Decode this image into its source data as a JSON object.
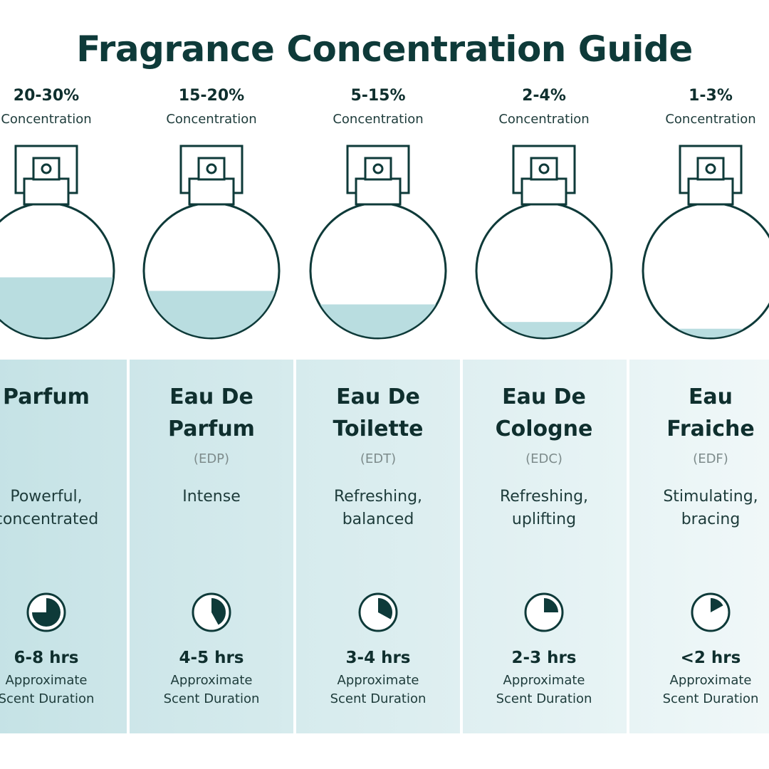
{
  "title": "Fragrance Concentration Guide",
  "colors": {
    "dark": "#0e3a39",
    "liquid": "#b9dde0",
    "panel_dark": "#c4e2e5",
    "panel_light": "#f1f8f9"
  },
  "fragrances": [
    {
      "concentration": "20-30%",
      "concentration_label": "Concentration",
      "fill_level": 0.45,
      "name_lines": [
        "Parfum"
      ],
      "abbreviation": "",
      "description_lines": [
        "Powerful,",
        "concentrated"
      ],
      "duration": "6-8 hrs",
      "duration_fraction": 0.75,
      "duration_label_1": "Approximate",
      "duration_label_2": "Scent Duration"
    },
    {
      "concentration": "15-20%",
      "concentration_label": "Concentration",
      "fill_level": 0.35,
      "name_lines": [
        "Eau De",
        "Parfum"
      ],
      "abbreviation": "(EDP)",
      "description_lines": [
        "Intense"
      ],
      "duration": "4-5 hrs",
      "duration_fraction": 0.42,
      "duration_label_1": "Approximate",
      "duration_label_2": "Scent Duration"
    },
    {
      "concentration": "5-15%",
      "concentration_label": "Concentration",
      "fill_level": 0.25,
      "name_lines": [
        "Eau De",
        "Toilette"
      ],
      "abbreviation": "(EDT)",
      "description_lines": [
        "Refreshing,",
        "balanced"
      ],
      "duration": "3-4 hrs",
      "duration_fraction": 0.33,
      "duration_label_1": "Approximate",
      "duration_label_2": "Scent Duration"
    },
    {
      "concentration": "2-4%",
      "concentration_label": "Concentration",
      "fill_level": 0.12,
      "name_lines": [
        "Eau De",
        "Cologne"
      ],
      "abbreviation": "(EDC)",
      "description_lines": [
        "Refreshing,",
        "uplifting"
      ],
      "duration": "2-3 hrs",
      "duration_fraction": 0.25,
      "duration_label_1": "Approximate",
      "duration_label_2": "Scent Duration"
    },
    {
      "concentration": "1-3%",
      "concentration_label": "Concentration",
      "fill_level": 0.07,
      "name_lines": [
        "Eau",
        "Fraiche"
      ],
      "abbreviation": "(EDF)",
      "description_lines": [
        "Stimulating,",
        "bracing"
      ],
      "duration": "<2 hrs",
      "duration_fraction": 0.17,
      "duration_label_1": "Approximate",
      "duration_label_2": "Scent Duration"
    }
  ]
}
